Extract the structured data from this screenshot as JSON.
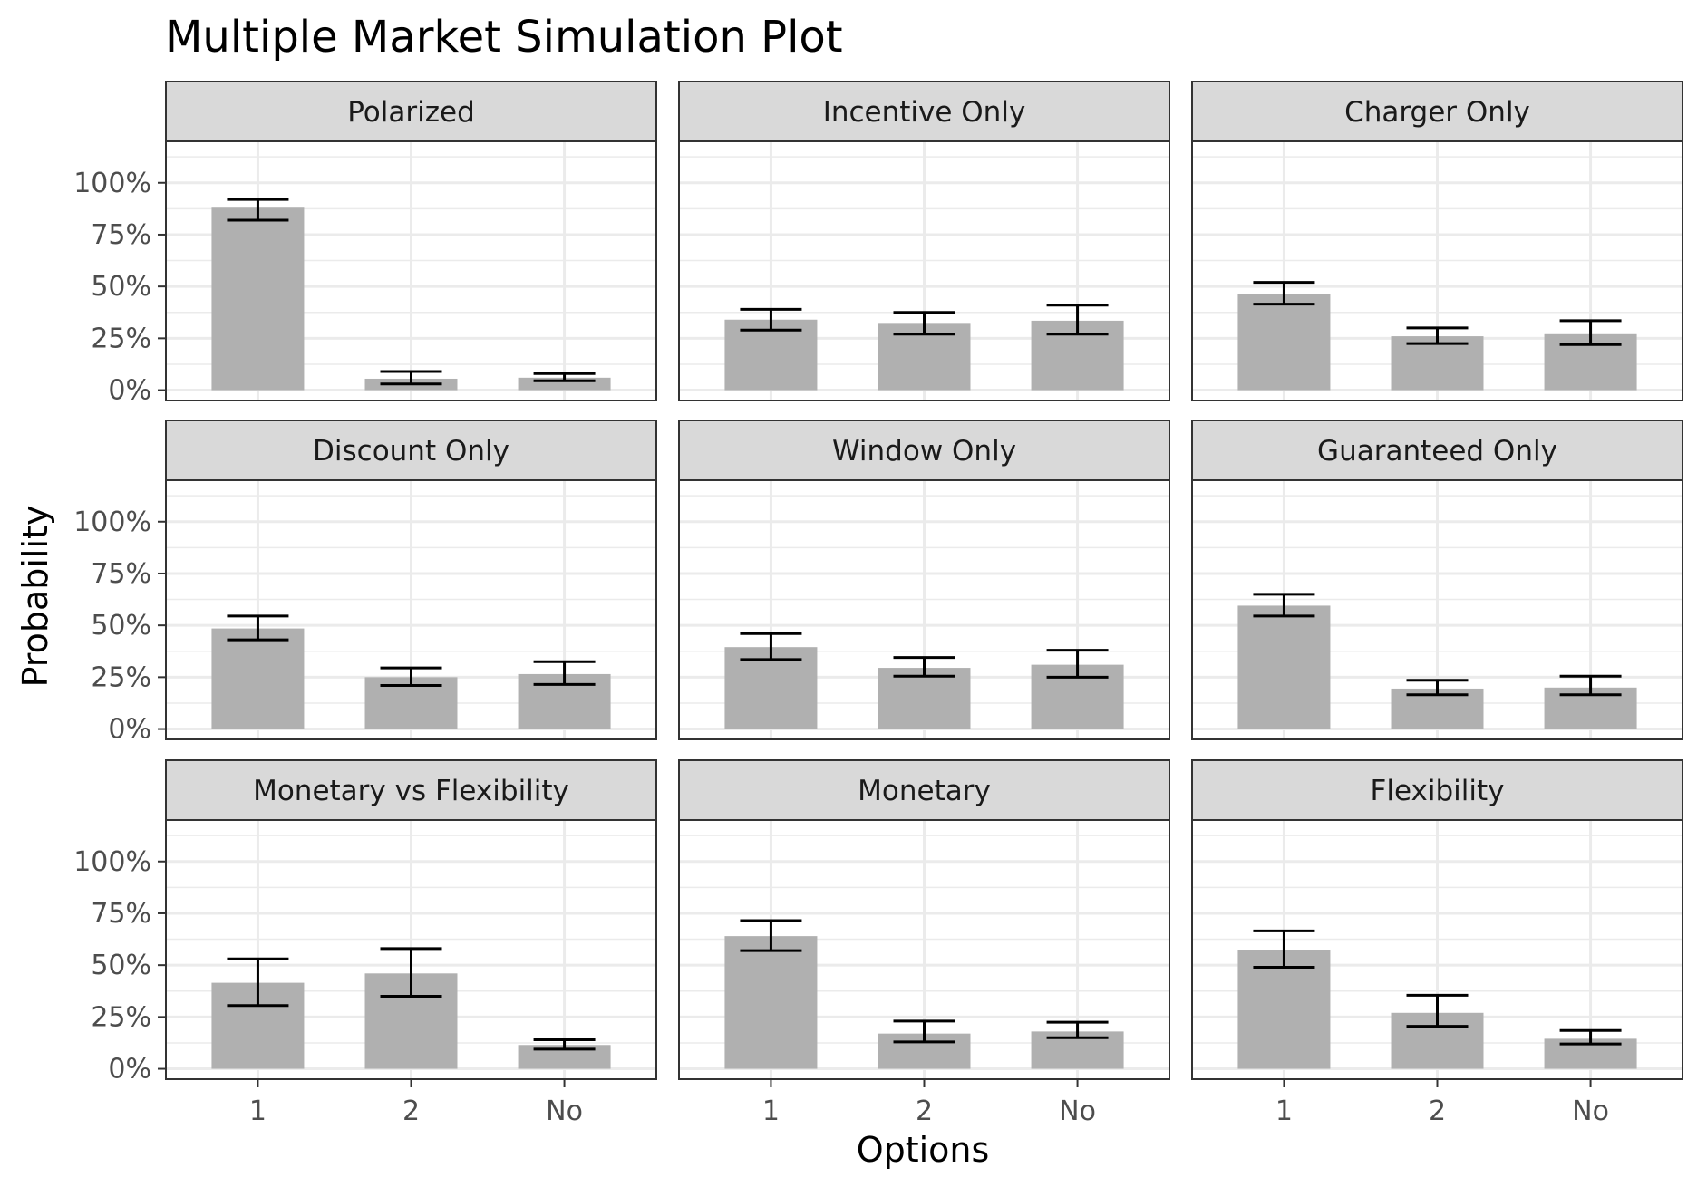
{
  "chart_data": {
    "type": "bar",
    "title": "Multiple Market Simulation Plot",
    "xlabel": "Options",
    "ylabel": "Probability",
    "categories": [
      "1",
      "2",
      "No"
    ],
    "ylim": [
      0,
      1
    ],
    "y_ticks": [
      0,
      0.25,
      0.5,
      0.75,
      1.0
    ],
    "y_tick_labels": [
      "0%",
      "25%",
      "50%",
      "75%",
      "100%"
    ],
    "grid": true,
    "facets": [
      {
        "name": "Polarized",
        "values": [
          0.88,
          0.055,
          0.06
        ],
        "lower": [
          0.82,
          0.03,
          0.045
        ],
        "upper": [
          0.92,
          0.09,
          0.08
        ]
      },
      {
        "name": "Incentive Only",
        "values": [
          0.34,
          0.32,
          0.335
        ],
        "lower": [
          0.29,
          0.27,
          0.27
        ],
        "upper": [
          0.39,
          0.375,
          0.41
        ]
      },
      {
        "name": "Charger Only",
        "values": [
          0.465,
          0.26,
          0.27
        ],
        "lower": [
          0.415,
          0.225,
          0.22
        ],
        "upper": [
          0.52,
          0.3,
          0.335
        ]
      },
      {
        "name": "Discount Only",
        "values": [
          0.485,
          0.25,
          0.265
        ],
        "lower": [
          0.43,
          0.21,
          0.215
        ],
        "upper": [
          0.545,
          0.295,
          0.325
        ]
      },
      {
        "name": "Window Only",
        "values": [
          0.395,
          0.295,
          0.31
        ],
        "lower": [
          0.335,
          0.255,
          0.25
        ],
        "upper": [
          0.46,
          0.345,
          0.38
        ]
      },
      {
        "name": "Guaranteed Only",
        "values": [
          0.595,
          0.195,
          0.2
        ],
        "lower": [
          0.545,
          0.165,
          0.165
        ],
        "upper": [
          0.65,
          0.235,
          0.255
        ]
      },
      {
        "name": "Monetary vs Flexibility",
        "values": [
          0.415,
          0.46,
          0.115
        ],
        "lower": [
          0.305,
          0.35,
          0.095
        ],
        "upper": [
          0.53,
          0.58,
          0.14
        ]
      },
      {
        "name": "Monetary",
        "values": [
          0.64,
          0.17,
          0.18
        ],
        "lower": [
          0.57,
          0.13,
          0.15
        ],
        "upper": [
          0.715,
          0.23,
          0.225
        ]
      },
      {
        "name": "Flexibility",
        "values": [
          0.575,
          0.27,
          0.145
        ],
        "lower": [
          0.49,
          0.205,
          0.12
        ],
        "upper": [
          0.665,
          0.355,
          0.185
        ]
      }
    ],
    "colors": {
      "bar": "#b0b0b0",
      "error_bar": "#000000",
      "strip_fill": "#d9d9d9",
      "grid": "#ebebeb",
      "panel_border": "#333333"
    }
  }
}
